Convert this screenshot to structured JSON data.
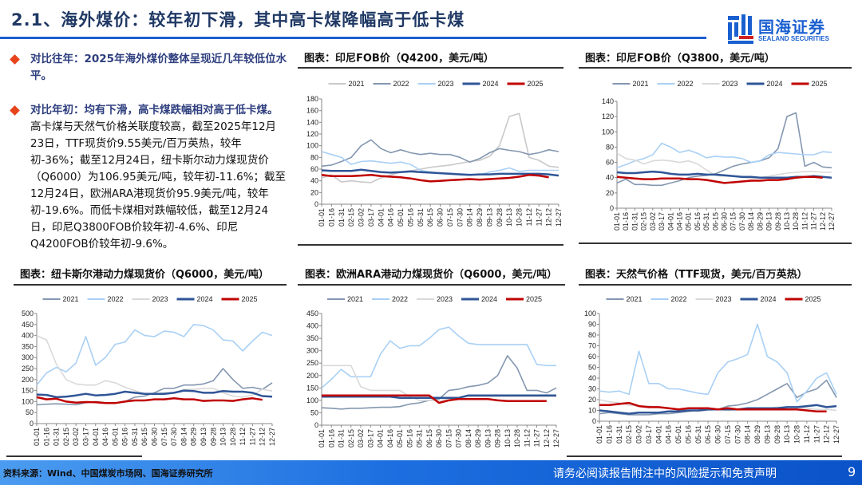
{
  "header": {
    "title": "2.1、海外煤价：较年初下滑，其中高卡煤降幅高于低卡煤",
    "logo_cn": "国海证券",
    "logo_en": "SEALAND SECURITIES"
  },
  "text": {
    "b1_lead": "对比往年：2025年海外煤价整体呈现近几年较低位水平。",
    "b2_lead": "对比年初：均有下滑，高卡煤跌幅相对高于低卡煤。",
    "b2_body": "高卡煤与天然气价格关联度较高，截至2025年12月23日，TTF现货价9.55美元/百万英热，较年初-36%；截至12月24日，纽卡斯尔动力煤现货价（Q6000）为106.95美元/吨，较年初-11.6%；截至12月24日，欧洲ARA港现货价95.9美元/吨，较年初-19.6%。而低卡煤相对跌幅较低，截至12月24日，印尼Q3800FOB价较年初-4.6%、印尼Q4200FOB价较年初-9.6%。"
  },
  "footer": {
    "source": "资料来源：Wind、中国煤炭市场网、国海证券研究所",
    "disclaimer": "请务必阅读报告附注中的风险提示和免责声明",
    "page": "9"
  },
  "chart_data": [
    {
      "type": "line",
      "title": "图表：印尼FOB价（Q4200，美元/吨）",
      "ylim": [
        0,
        180
      ],
      "ystep": 20,
      "legend": "top",
      "categories": [
        "01-01",
        "01-16",
        "01-31",
        "02-15",
        "03-02",
        "03-17",
        "04-01",
        "04-16",
        "05-01",
        "05-16",
        "05-31",
        "06-15",
        "06-30",
        "07-15",
        "07-30",
        "08-14",
        "08-29",
        "09-13",
        "09-28",
        "10-13",
        "10-28",
        "11-12",
        "11-27",
        "12-12",
        "12-27"
      ],
      "series": [
        {
          "name": "2021",
          "color": "#c9c9c9",
          "values": [
            45,
            50,
            38,
            40,
            38,
            37,
            45,
            50,
            55,
            57,
            60,
            63,
            65,
            67,
            70,
            73,
            75,
            82,
            100,
            150,
            155,
            80,
            75,
            65,
            63
          ]
        },
        {
          "name": "2022",
          "color": "#8497b0",
          "values": [
            65,
            67,
            73,
            80,
            100,
            110,
            95,
            88,
            93,
            88,
            85,
            87,
            85,
            85,
            80,
            72,
            78,
            88,
            95,
            92,
            90,
            85,
            88,
            93,
            90
          ]
        },
        {
          "name": "2023",
          "color": "#a9d0f5",
          "values": [
            90,
            85,
            80,
            68,
            73,
            74,
            72,
            70,
            72,
            68,
            58,
            55,
            53,
            53,
            52,
            51,
            50,
            55,
            58,
            62,
            56,
            58,
            58,
            58,
            58
          ]
        },
        {
          "name": "2024",
          "color": "#2f5597",
          "values": [
            58,
            57,
            57,
            57,
            59,
            57,
            55,
            54,
            55,
            56,
            55,
            54,
            53,
            52,
            51,
            50,
            51,
            51,
            52,
            52,
            52,
            52,
            52,
            51,
            49
          ]
        },
        {
          "name": "2025",
          "color": "#c00000",
          "values": [
            50,
            48,
            48,
            48,
            49,
            50,
            48,
            47,
            46,
            44,
            41,
            39,
            40,
            41,
            42,
            43,
            42,
            43,
            44,
            45,
            47,
            50,
            49,
            46,
            null
          ]
        }
      ]
    },
    {
      "type": "line",
      "title": "图表：印尼FOB价（Q3800，美元/吨）",
      "ylim": [
        0,
        140
      ],
      "ystep": 20,
      "legend": "top",
      "categories": [
        "01-01",
        "01-16",
        "01-31",
        "02-15",
        "03-02",
        "03-17",
        "04-01",
        "04-16",
        "05-01",
        "05-16",
        "05-31",
        "06-15",
        "06-30",
        "07-15",
        "07-30",
        "08-14",
        "08-29",
        "09-13",
        "09-28",
        "10-13",
        "10-28",
        "11-12",
        "11-27",
        "12-12",
        "12-27"
      ],
      "series": [
        {
          "name": "2021",
          "color": "#8497b0",
          "values": [
            33,
            38,
            31,
            31,
            30,
            30,
            33,
            36,
            40,
            42,
            43,
            45,
            50,
            55,
            58,
            60,
            62,
            66,
            78,
            120,
            125,
            55,
            60,
            54,
            53
          ]
        },
        {
          "name": "2022",
          "color": "#a9d0f5",
          "values": [
            53,
            57,
            62,
            65,
            70,
            85,
            80,
            73,
            76,
            72,
            66,
            68,
            67,
            67,
            65,
            60,
            62,
            70,
            73,
            72,
            71,
            70,
            70,
            74,
            73
          ]
        },
        {
          "name": "2023",
          "color": "#d9d9d9",
          "values": [
            72,
            65,
            63,
            58,
            62,
            63,
            62,
            60,
            62,
            58,
            50,
            43,
            42,
            42,
            40,
            39,
            40,
            42,
            44,
            46,
            47,
            48,
            48,
            47,
            47
          ]
        },
        {
          "name": "2024",
          "color": "#2f5597",
          "values": [
            47,
            46,
            46,
            47,
            48,
            47,
            45,
            44,
            44,
            45,
            44,
            44,
            43,
            42,
            41,
            41,
            40,
            40,
            40,
            40,
            41,
            41,
            42,
            41,
            40
          ]
        },
        {
          "name": "2025",
          "color": "#c00000",
          "values": [
            41,
            40,
            39,
            38,
            38,
            39,
            39,
            39,
            38,
            38,
            37,
            35,
            33,
            34,
            35,
            36,
            36,
            37,
            37,
            38,
            40,
            41,
            41,
            40,
            null
          ]
        }
      ]
    },
    {
      "type": "line",
      "title": "图表：纽卡斯尔港动力煤现货价（Q6000，美元/吨）",
      "ylim": [
        0,
        500
      ],
      "ystep": 50,
      "legend": "top",
      "categories": [
        "01-01",
        "01-16",
        "01-31",
        "02-15",
        "03-02",
        "03-17",
        "04-01",
        "04-16",
        "05-01",
        "05-16",
        "05-31",
        "06-15",
        "06-30",
        "07-15",
        "07-30",
        "08-14",
        "08-29",
        "09-13",
        "09-28",
        "10-13",
        "10-28",
        "11-12",
        "11-27",
        "12-12",
        "12-27"
      ],
      "series": [
        {
          "name": "2021",
          "color": "#8497b0",
          "values": [
            85,
            88,
            90,
            88,
            85,
            95,
            100,
            95,
            92,
            100,
            120,
            125,
            140,
            160,
            160,
            175,
            175,
            180,
            195,
            250,
            200,
            160,
            165,
            155,
            185
          ]
        },
        {
          "name": "2022",
          "color": "#a9d0f5",
          "values": [
            175,
            230,
            255,
            235,
            275,
            395,
            265,
            300,
            360,
            370,
            425,
            400,
            395,
            420,
            415,
            395,
            450,
            445,
            425,
            380,
            375,
            330,
            375,
            415,
            400
          ]
        },
        {
          "name": "2023",
          "color": "#d9d9d9",
          "values": [
            400,
            380,
            270,
            200,
            180,
            175,
            175,
            195,
            185,
            165,
            150,
            135,
            135,
            140,
            140,
            155,
            155,
            160,
            160,
            140,
            125,
            120,
            130,
            155,
            148
          ]
        },
        {
          "name": "2024",
          "color": "#2f5597",
          "values": [
            132,
            130,
            120,
            122,
            128,
            135,
            128,
            130,
            135,
            145,
            140,
            135,
            135,
            135,
            140,
            150,
            148,
            140,
            140,
            148,
            145,
            145,
            140,
            125,
            122
          ]
        },
        {
          "name": "2025",
          "color": "#c00000",
          "values": [
            120,
            110,
            113,
            100,
            95,
            98,
            97,
            93,
            93,
            100,
            105,
            105,
            110,
            110,
            115,
            110,
            110,
            103,
            105,
            105,
            103,
            110,
            115,
            108,
            null
          ]
        }
      ]
    },
    {
      "type": "line",
      "title": "图表：欧洲ARA港动力煤现货价（Q6000，美元/吨）",
      "ylim": [
        0,
        450
      ],
      "ystep": 50,
      "legend": "top",
      "categories": [
        "01-01",
        "01-16",
        "01-31",
        "02-15",
        "03-02",
        "03-17",
        "04-01",
        "04-16",
        "05-01",
        "05-16",
        "05-31",
        "06-15",
        "06-30",
        "07-15",
        "07-30",
        "08-14",
        "08-29",
        "09-13",
        "09-28",
        "10-13",
        "10-28",
        "11-12",
        "11-27",
        "12-12",
        "12-27"
      ],
      "series": [
        {
          "name": "2021",
          "color": "#8497b0",
          "values": [
            70,
            68,
            65,
            68,
            68,
            70,
            72,
            72,
            75,
            85,
            90,
            100,
            105,
            140,
            145,
            155,
            160,
            170,
            200,
            280,
            230,
            140,
            140,
            130,
            150
          ]
        },
        {
          "name": "2022",
          "color": "#a9d0f5",
          "values": [
            150,
            185,
            225,
            195,
            195,
            195,
            285,
            340,
            310,
            320,
            320,
            350,
            385,
            395,
            360,
            330,
            325,
            325,
            325,
            325,
            325,
            325,
            245,
            240,
            240
          ]
        },
        {
          "name": "2023",
          "color": "#d9d9d9",
          "values": [
            240,
            240,
            240,
            240,
            155,
            140,
            140,
            140,
            140,
            115,
            100,
            100,
            100,
            105,
            110,
            115,
            115,
            115,
            115,
            115,
            115,
            115,
            115,
            115,
            115
          ]
        },
        {
          "name": "2024",
          "color": "#2f5597",
          "values": [
            115,
            115,
            115,
            115,
            115,
            115,
            115,
            115,
            110,
            110,
            110,
            110,
            110,
            110,
            110,
            120,
            120,
            120,
            120,
            120,
            120,
            120,
            120,
            120,
            120
          ]
        },
        {
          "name": "2025",
          "color": "#c00000",
          "values": [
            120,
            120,
            120,
            120,
            120,
            120,
            120,
            120,
            120,
            120,
            120,
            120,
            90,
            100,
            105,
            105,
            105,
            105,
            100,
            97,
            97,
            97,
            97,
            97,
            null
          ]
        }
      ]
    },
    {
      "type": "line",
      "title": "图表：天然气价格（TTF现货，美元/百万英热）",
      "ylim": [
        0,
        100
      ],
      "ystep": 10,
      "legend": "top",
      "categories": [
        "01-01",
        "01-16",
        "01-31",
        "02-15",
        "03-02",
        "03-17",
        "04-01",
        "04-16",
        "05-01",
        "05-16",
        "05-31",
        "06-15",
        "06-30",
        "07-15",
        "07-30",
        "08-14",
        "08-29",
        "09-13",
        "09-28",
        "10-13",
        "10-28",
        "11-12",
        "11-27",
        "12-12",
        "12-27"
      ],
      "series": [
        {
          "name": "2021",
          "color": "#8497b0",
          "values": [
            7,
            8,
            7,
            6,
            6,
            6,
            7,
            7,
            8,
            9,
            10,
            11,
            11,
            14,
            15,
            17,
            20,
            25,
            30,
            35,
            22,
            27,
            30,
            38,
            22
          ]
        },
        {
          "name": "2022",
          "color": "#a9d0f5",
          "values": [
            28,
            27,
            28,
            25,
            65,
            35,
            35,
            30,
            30,
            28,
            26,
            25,
            45,
            55,
            58,
            62,
            90,
            60,
            55,
            45,
            18,
            28,
            40,
            45,
            25
          ]
        },
        {
          "name": "2023",
          "color": "#d9d9d9",
          "values": [
            20,
            18,
            17,
            15,
            14,
            14,
            13,
            12,
            11,
            10,
            9,
            10,
            11,
            10,
            11,
            12,
            12,
            12,
            13,
            13,
            13,
            12,
            11,
            11,
            10
          ]
        },
        {
          "name": "2024",
          "color": "#2f5597",
          "values": [
            10,
            9,
            8,
            7,
            8,
            8,
            8,
            9,
            9,
            10,
            10,
            11,
            11,
            11,
            11,
            12,
            12,
            12,
            12,
            13,
            13,
            14,
            15,
            13,
            14
          ]
        },
        {
          "name": "2025",
          "color": "#c00000",
          "values": [
            15,
            15,
            16,
            17,
            14,
            13,
            13,
            12,
            11,
            12,
            12,
            12,
            11,
            12,
            11,
            11,
            11,
            11,
            11,
            11,
            11,
            10,
            9,
            9,
            null
          ]
        }
      ]
    }
  ]
}
